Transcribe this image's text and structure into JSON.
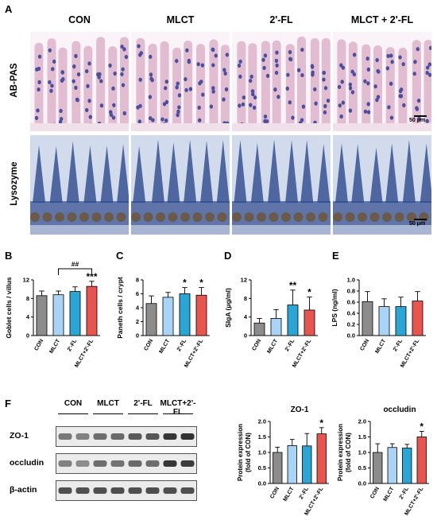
{
  "panels": {
    "a": "A",
    "b": "B",
    "c": "C",
    "d": "D",
    "e": "E",
    "f": "F"
  },
  "histology": {
    "columns": [
      "CON",
      "MLCT",
      "2'-FL",
      "MLCT + 2'-FL"
    ],
    "rows": [
      "AB-PAS",
      "Lysozyme"
    ],
    "scale_label": "50 μm",
    "colors": {
      "abpas_bg": "#efe0ea",
      "abpas_villus": "#d9a9c4",
      "goblet": "#4a4fa0",
      "lyso_bg": "#a8b5d3",
      "lyso_tissue": "#2e4a8e",
      "paneth": "#6b5a4a"
    }
  },
  "significance": {
    "hash": "##"
  },
  "chart_data": [
    {
      "id": "goblet",
      "type": "bar",
      "categories": [
        "CON",
        "MLCT",
        "2'-FL",
        "MLCT+2'-FL"
      ],
      "values": [
        8.6,
        8.8,
        9.5,
        10.6
      ],
      "errors": [
        1.0,
        0.8,
        1.0,
        1.1
      ],
      "annotations": [
        "",
        "",
        "",
        "***"
      ],
      "ylabel": "Goblet cells / villus",
      "ylim": [
        0,
        12
      ],
      "yticks": [
        0,
        4,
        8,
        12
      ],
      "colors": [
        "#8c8c8c",
        "#a9d4f5",
        "#2aa6d6",
        "#e8554e"
      ]
    },
    {
      "id": "paneth",
      "type": "bar",
      "categories": [
        "CON",
        "MLCT",
        "2'-FL",
        "MLCT+2'-FL"
      ],
      "values": [
        4.6,
        5.5,
        6.0,
        5.8
      ],
      "errors": [
        1.1,
        0.7,
        0.9,
        1.1
      ],
      "annotations": [
        "",
        "",
        "*",
        "*"
      ],
      "ylabel": "Paneth cells / crypt",
      "ylim": [
        0,
        8
      ],
      "yticks": [
        0,
        2,
        4,
        6,
        8
      ],
      "colors": [
        "#8c8c8c",
        "#a9d4f5",
        "#2aa6d6",
        "#e8554e"
      ]
    },
    {
      "id": "siga",
      "type": "bar",
      "categories": [
        "CON",
        "MLCT",
        "2'-FL",
        "MLCT+2'-FL"
      ],
      "values": [
        2.7,
        3.7,
        6.6,
        5.5
      ],
      "errors": [
        1.0,
        1.9,
        3.2,
        2.8
      ],
      "annotations": [
        "",
        "",
        "**",
        "*"
      ],
      "ylabel": "SIgA (μg/ml)",
      "ylim": [
        0,
        12
      ],
      "yticks": [
        0,
        4,
        8,
        12
      ],
      "colors": [
        "#8c8c8c",
        "#a9d4f5",
        "#2aa6d6",
        "#e8554e"
      ]
    },
    {
      "id": "lps",
      "type": "bar",
      "categories": [
        "CON",
        "MLCT",
        "2'-FL",
        "MLCT+2'-FL"
      ],
      "values": [
        0.61,
        0.52,
        0.52,
        0.62
      ],
      "errors": [
        0.18,
        0.14,
        0.17,
        0.17
      ],
      "annotations": [
        "",
        "",
        "",
        ""
      ],
      "ylabel": "LPS (ng/ml)",
      "ylim": [
        0,
        1.0
      ],
      "yticks": [
        0.0,
        0.2,
        0.4,
        0.6,
        0.8,
        1.0
      ],
      "colors": [
        "#8c8c8c",
        "#a9d4f5",
        "#2aa6d6",
        "#e8554e"
      ]
    },
    {
      "id": "zo1",
      "type": "bar",
      "title": "ZO-1",
      "categories": [
        "CON",
        "MLCT",
        "2'-FL",
        "MLCT+2'-FL"
      ],
      "values": [
        1.0,
        1.22,
        1.21,
        1.6
      ],
      "errors": [
        0.17,
        0.2,
        0.4,
        0.2
      ],
      "annotations": [
        "",
        "",
        "",
        "*"
      ],
      "ylabel": "Protein expression (fold of CON)",
      "ylim": [
        0,
        2.0
      ],
      "yticks": [
        0.0,
        0.5,
        1.0,
        1.5,
        2.0
      ],
      "colors": [
        "#8c8c8c",
        "#a9d4f5",
        "#2aa6d6",
        "#e8554e"
      ]
    },
    {
      "id": "occludin",
      "type": "bar",
      "title": "occludin",
      "categories": [
        "CON",
        "MLCT",
        "2'-FL",
        "MLCT+2'-FL"
      ],
      "values": [
        1.0,
        1.16,
        1.14,
        1.5
      ],
      "errors": [
        0.28,
        0.12,
        0.12,
        0.18
      ],
      "annotations": [
        "",
        "",
        "",
        "*"
      ],
      "ylabel": "Protein expression (fold of CON)",
      "ylim": [
        0,
        2.0
      ],
      "yticks": [
        0.0,
        0.5,
        1.0,
        1.5,
        2.0
      ],
      "colors": [
        "#8c8c8c",
        "#a9d4f5",
        "#2aa6d6",
        "#e8554e"
      ]
    }
  ],
  "western_blot": {
    "groups": [
      "CON",
      "MLCT",
      "2'-FL",
      "MLCT+2'-FL"
    ],
    "rows": [
      {
        "label": "ZO-1",
        "intensities": [
          0.55,
          0.5,
          0.6,
          0.62,
          0.7,
          0.72,
          0.88,
          0.9
        ]
      },
      {
        "label": "occludin",
        "intensities": [
          0.5,
          0.45,
          0.6,
          0.58,
          0.62,
          0.6,
          0.88,
          0.85
        ]
      },
      {
        "label": "β-actin",
        "intensities": [
          0.75,
          0.75,
          0.75,
          0.76,
          0.75,
          0.76,
          0.75,
          0.75
        ]
      }
    ]
  }
}
